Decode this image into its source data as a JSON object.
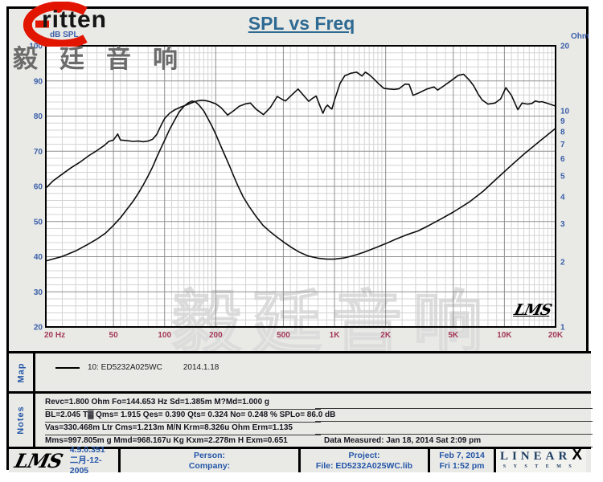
{
  "brand": {
    "swoosh_icon": "red-swoosh-e",
    "word": "ritten",
    "cn_text": "毅廷音响",
    "accent_color": "#e21500"
  },
  "title": "SPL vs Freq",
  "chart_data": {
    "type": "line",
    "title": "SPL vs Freq",
    "x_axis": {
      "scale": "log",
      "min": 20,
      "max": 20000,
      "ticks": [
        {
          "label": "20 Hz",
          "f": 20
        },
        {
          "label": "50",
          "f": 50
        },
        {
          "label": "100",
          "f": 100
        },
        {
          "label": "200",
          "f": 200
        },
        {
          "label": "500",
          "f": 500
        },
        {
          "label": "1K",
          "f": 1000
        },
        {
          "label": "2K",
          "f": 2000
        },
        {
          "label": "5K",
          "f": 5000
        },
        {
          "label": "10K",
          "f": 10000
        },
        {
          "label": "20K",
          "f": 20000
        }
      ]
    },
    "y_left": {
      "label": "dB SPL",
      "scale": "linear",
      "min": 20,
      "max": 100,
      "ticks": [
        100,
        90,
        80,
        70,
        60,
        50,
        40,
        30,
        20
      ],
      "minor_step": 2
    },
    "y_right": {
      "label": "Ohm",
      "scale": "log",
      "min": 1,
      "max": 20,
      "ticks": [
        20,
        10,
        9,
        8,
        7,
        6,
        5,
        4,
        3,
        2,
        1
      ]
    },
    "grid": {
      "major_color": "#909090",
      "minor_color": "#d4d4d4",
      "curve_color": "#0d0d0d",
      "plot_bg": "#ffffff"
    },
    "watermark": "毅廷音响",
    "inner_logo": "LMS",
    "series": [
      {
        "name": "10: ED5232A025WC",
        "axis": "left",
        "points": [
          [
            20,
            59.5
          ],
          [
            22,
            61.5
          ],
          [
            25,
            63.5
          ],
          [
            28,
            65.2
          ],
          [
            32,
            67
          ],
          [
            36,
            68.8
          ],
          [
            40,
            70.2
          ],
          [
            44,
            71.6
          ],
          [
            47,
            72.8
          ],
          [
            50,
            73.2
          ],
          [
            53,
            74.9
          ],
          [
            55,
            73.2
          ],
          [
            60,
            73
          ],
          [
            65,
            72.8
          ],
          [
            70,
            72.9
          ],
          [
            75,
            72.7
          ],
          [
            80,
            72.9
          ],
          [
            85,
            73.4
          ],
          [
            90,
            74.8
          ],
          [
            95,
            77.2
          ],
          [
            100,
            79.3
          ],
          [
            107,
            80.8
          ],
          [
            115,
            81.8
          ],
          [
            125,
            82.6
          ],
          [
            135,
            83.2
          ],
          [
            145,
            83.8
          ],
          [
            155,
            84.3
          ],
          [
            165,
            84.5
          ],
          [
            175,
            84.4
          ],
          [
            185,
            84.1
          ],
          [
            200,
            83.5
          ],
          [
            215,
            82.4
          ],
          [
            235,
            80.3
          ],
          [
            255,
            81.5
          ],
          [
            275,
            82.8
          ],
          [
            300,
            83.5
          ],
          [
            320,
            83.7
          ],
          [
            345,
            82
          ],
          [
            382,
            80.4
          ],
          [
            420,
            82.5
          ],
          [
            460,
            85.6
          ],
          [
            490,
            84.8
          ],
          [
            515,
            84.3
          ],
          [
            555,
            85.8
          ],
          [
            610,
            87.7
          ],
          [
            660,
            85.8
          ],
          [
            705,
            84.2
          ],
          [
            740,
            85
          ],
          [
            780,
            85.7
          ],
          [
            820,
            83
          ],
          [
            855,
            80.8
          ],
          [
            885,
            82.5
          ],
          [
            910,
            83.1
          ],
          [
            940,
            82.4
          ],
          [
            965,
            82
          ],
          [
            1000,
            84.5
          ],
          [
            1080,
            89.4
          ],
          [
            1150,
            91.5
          ],
          [
            1250,
            92.2
          ],
          [
            1350,
            92.5
          ],
          [
            1450,
            91.4
          ],
          [
            1520,
            92.5
          ],
          [
            1600,
            91.8
          ],
          [
            1700,
            90.6
          ],
          [
            1820,
            89.2
          ],
          [
            1950,
            87.9
          ],
          [
            2100,
            87.7
          ],
          [
            2250,
            87.6
          ],
          [
            2400,
            87.8
          ],
          [
            2600,
            89.1
          ],
          [
            2750,
            89
          ],
          [
            2900,
            85.9
          ],
          [
            3100,
            86.5
          ],
          [
            3500,
            87.7
          ],
          [
            3850,
            88.3
          ],
          [
            4050,
            87.4
          ],
          [
            4400,
            88.6
          ],
          [
            4800,
            89.9
          ],
          [
            5350,
            91.6
          ],
          [
            5750,
            91.9
          ],
          [
            6200,
            90.3
          ],
          [
            6600,
            88.6
          ],
          [
            7000,
            86.3
          ],
          [
            7400,
            84.6
          ],
          [
            8000,
            83.4
          ],
          [
            8800,
            83.7
          ],
          [
            9500,
            84.9
          ],
          [
            10200,
            88.1
          ],
          [
            11000,
            85.9
          ],
          [
            12000,
            81.8
          ],
          [
            12700,
            83.7
          ],
          [
            13700,
            83.4
          ],
          [
            14500,
            83.6
          ],
          [
            15200,
            84.3
          ],
          [
            16000,
            84
          ],
          [
            16700,
            84.1
          ],
          [
            18000,
            83.6
          ],
          [
            19800,
            82.9
          ]
        ]
      },
      {
        "name": "Impedance",
        "axis": "right",
        "points": [
          [
            20,
            2.02
          ],
          [
            25,
            2.12
          ],
          [
            30,
            2.25
          ],
          [
            35,
            2.4
          ],
          [
            40,
            2.55
          ],
          [
            45,
            2.72
          ],
          [
            50,
            2.95
          ],
          [
            55,
            3.2
          ],
          [
            60,
            3.5
          ],
          [
            65,
            3.8
          ],
          [
            70,
            4.15
          ],
          [
            75,
            4.55
          ],
          [
            80,
            5.0
          ],
          [
            85,
            5.5
          ],
          [
            90,
            6.1
          ],
          [
            95,
            6.7
          ],
          [
            100,
            7.3
          ],
          [
            107,
            8.2
          ],
          [
            115,
            9.1
          ],
          [
            122,
            9.9
          ],
          [
            130,
            10.5
          ],
          [
            138,
            10.9
          ],
          [
            145,
            11.1
          ],
          [
            152,
            11.0
          ],
          [
            160,
            10.6
          ],
          [
            170,
            10.0
          ],
          [
            180,
            9.2
          ],
          [
            190,
            8.5
          ],
          [
            200,
            7.8
          ],
          [
            212,
            7.0
          ],
          [
            225,
            6.3
          ],
          [
            240,
            5.6
          ],
          [
            255,
            5.0
          ],
          [
            270,
            4.5
          ],
          [
            290,
            4.0
          ],
          [
            315,
            3.6
          ],
          [
            345,
            3.25
          ],
          [
            380,
            2.95
          ],
          [
            420,
            2.75
          ],
          [
            460,
            2.6
          ],
          [
            510,
            2.45
          ],
          [
            560,
            2.33
          ],
          [
            620,
            2.22
          ],
          [
            700,
            2.13
          ],
          [
            800,
            2.08
          ],
          [
            900,
            2.06
          ],
          [
            1000,
            2.06
          ],
          [
            1150,
            2.09
          ],
          [
            1300,
            2.14
          ],
          [
            1500,
            2.22
          ],
          [
            1750,
            2.33
          ],
          [
            2000,
            2.43
          ],
          [
            2300,
            2.55
          ],
          [
            2700,
            2.68
          ],
          [
            3100,
            2.78
          ],
          [
            3600,
            2.95
          ],
          [
            4200,
            3.15
          ],
          [
            5000,
            3.4
          ],
          [
            6200,
            3.78
          ],
          [
            7500,
            4.25
          ],
          [
            9000,
            4.85
          ],
          [
            11000,
            5.6
          ],
          [
            13000,
            6.3
          ],
          [
            16000,
            7.2
          ],
          [
            20000,
            8.3
          ]
        ]
      }
    ]
  },
  "map": {
    "label": "Map",
    "legend_id": "10: ED5232A025WC",
    "legend_date": "2014.1.18"
  },
  "notes": {
    "label": "Notes",
    "lines": [
      "Revc=1.800 Ohm  Fo=144.653 Hz  Sd=1.385m M?Md=1.000 g",
      "BL=2.045 T▓  Qms= 1.915  Qes= 0.390  Qts= 0.324  No= 0.248 %  SPLo= 86.0 dB",
      "Vas=330.468m Ltr  Cms=1.213m M/N  Krm=8.326u Ohm  Erm=1.135",
      "Mms=997.805m g  Mmd=968.167u Kg  Kxm=2.278m H  Exm=0.651"
    ],
    "data_measured": "Data Measured: Jan 18, 2014  Sat  2:09 pm"
  },
  "footer": {
    "lms_logo": "LMS",
    "version": "4.5.0.351",
    "version_date": "二月-12-2005",
    "person_label": "Person:",
    "company_label": "Company:",
    "project_label": "Project:",
    "file_label": "File: ED5232A025WC.lib",
    "date": "Feb  7, 2014",
    "time": "Fri  1:52 pm",
    "linearx": {
      "linear": "LINEAR",
      "x": "X",
      "systems": "SYSTEMS"
    }
  }
}
